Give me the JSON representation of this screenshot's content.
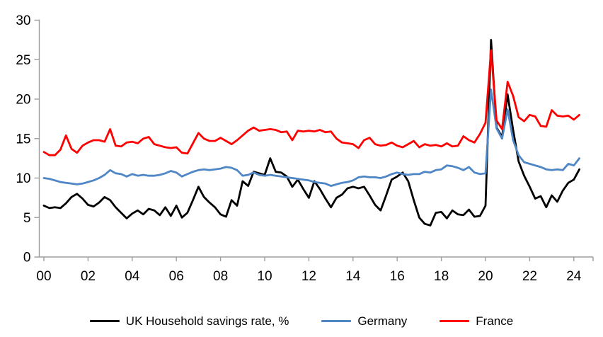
{
  "chart_data": {
    "type": "line",
    "title": "",
    "xlabel": "",
    "ylabel": "",
    "x_unit": "quarterly, 2000Q1 - 2024Q2",
    "x_tick_labels": [
      "00",
      "02",
      "04",
      "06",
      "08",
      "10",
      "12",
      "14",
      "16",
      "18",
      "20",
      "22",
      "24"
    ],
    "y_ticks": [
      0,
      5,
      10,
      15,
      20,
      25,
      30
    ],
    "ylim": [
      0,
      30
    ],
    "grid": "off",
    "legend_position": "bottom-center",
    "axis_color": "#9d9d9d",
    "text_color": "#000000",
    "series": [
      {
        "name": "UK Household savings rate, %",
        "color": "#000000",
        "values": [
          6.5,
          6.2,
          6.3,
          6.2,
          6.8,
          7.6,
          8.0,
          7.4,
          6.6,
          6.4,
          6.9,
          7.6,
          7.2,
          6.3,
          5.6,
          4.9,
          5.5,
          5.9,
          5.4,
          6.1,
          5.9,
          5.3,
          6.3,
          5.2,
          6.5,
          5.0,
          5.6,
          7.2,
          8.9,
          7.6,
          6.9,
          6.3,
          5.4,
          5.1,
          7.2,
          6.5,
          9.6,
          9.0,
          10.8,
          10.6,
          10.4,
          12.5,
          10.8,
          10.7,
          10.2,
          8.9,
          9.8,
          8.6,
          7.5,
          9.6,
          8.6,
          7.4,
          6.3,
          7.5,
          7.9,
          8.7,
          8.9,
          8.7,
          8.9,
          7.8,
          6.6,
          5.9,
          7.8,
          9.8,
          10.2,
          10.7,
          9.6,
          7.2,
          5.0,
          4.2,
          4.0,
          5.6,
          5.7,
          4.9,
          5.9,
          5.4,
          5.3,
          6.0,
          5.1,
          5.2,
          6.5,
          27.5,
          16.4,
          15.2,
          20.6,
          16.1,
          12.1,
          10.3,
          8.9,
          7.4,
          7.7,
          6.3,
          7.8,
          7.0,
          8.4,
          9.4,
          9.8,
          11.1
        ]
      },
      {
        "name": "Germany",
        "color": "#4f86c6",
        "values": [
          10.0,
          9.9,
          9.7,
          9.5,
          9.4,
          9.3,
          9.2,
          9.3,
          9.5,
          9.7,
          10.0,
          10.4,
          11.0,
          10.6,
          10.5,
          10.2,
          10.5,
          10.3,
          10.4,
          10.3,
          10.3,
          10.4,
          10.6,
          10.9,
          10.7,
          10.2,
          10.5,
          10.8,
          11.0,
          11.1,
          11.0,
          11.1,
          11.2,
          11.4,
          11.3,
          11.0,
          10.3,
          10.4,
          10.7,
          10.4,
          10.3,
          10.4,
          10.3,
          10.2,
          10.1,
          10.0,
          9.9,
          9.8,
          9.7,
          9.5,
          9.4,
          9.3,
          9.0,
          9.2,
          9.4,
          9.5,
          9.7,
          10.1,
          10.2,
          10.1,
          10.1,
          10.0,
          10.2,
          10.5,
          10.7,
          10.5,
          10.4,
          10.5,
          10.5,
          10.8,
          10.7,
          11.0,
          11.1,
          11.6,
          11.5,
          11.3,
          11.0,
          11.4,
          10.7,
          10.5,
          10.6,
          21.2,
          16.3,
          15.0,
          18.7,
          14.8,
          12.9,
          12.0,
          11.8,
          11.6,
          11.4,
          11.1,
          11.0,
          11.1,
          11.0,
          11.8,
          11.6,
          12.5
        ]
      },
      {
        "name": "France",
        "color": "#ff0000",
        "values": [
          13.3,
          12.9,
          12.9,
          13.6,
          15.4,
          13.7,
          13.2,
          14.1,
          14.5,
          14.8,
          14.8,
          14.6,
          16.2,
          14.1,
          14.0,
          14.5,
          14.6,
          14.4,
          15.0,
          15.2,
          14.3,
          14.1,
          13.9,
          13.8,
          13.9,
          13.2,
          13.1,
          14.4,
          15.7,
          15.0,
          14.7,
          14.7,
          15.1,
          14.7,
          14.3,
          14.8,
          15.4,
          16.0,
          16.4,
          16.0,
          16.1,
          16.2,
          16.1,
          15.8,
          15.9,
          14.8,
          16.0,
          15.9,
          16.0,
          15.9,
          16.1,
          15.8,
          15.9,
          15.0,
          14.5,
          14.4,
          14.3,
          13.8,
          14.8,
          15.1,
          14.3,
          14.1,
          14.2,
          14.5,
          14.1,
          13.9,
          14.3,
          14.7,
          13.9,
          14.3,
          14.1,
          14.2,
          14.0,
          14.4,
          14.0,
          14.1,
          15.3,
          14.8,
          14.5,
          15.6,
          17.0,
          26.2,
          17.3,
          16.2,
          22.2,
          20.4,
          17.7,
          17.2,
          18.0,
          17.8,
          16.6,
          16.5,
          18.6,
          17.9,
          17.8,
          17.9,
          17.4,
          18.0
        ]
      }
    ]
  },
  "legend": {
    "uk_label": "UK Household savings rate, %",
    "germany_label": "Germany",
    "france_label": "France"
  }
}
